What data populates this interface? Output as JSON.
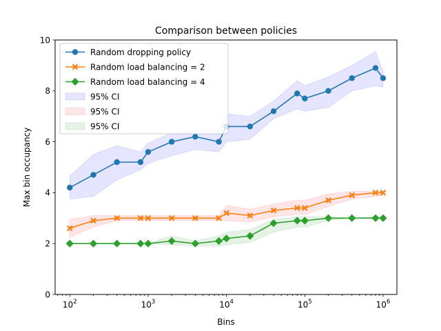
{
  "chart_data": {
    "type": "line",
    "title": "Comparison between policies",
    "xlabel": "Bins",
    "ylabel": "Max bin occupancy",
    "x_scale": "log",
    "xlim": [
      65,
      1500000
    ],
    "ylim": [
      0,
      10
    ],
    "x_ticks": [
      {
        "value": 100,
        "base": "10",
        "exp": "2"
      },
      {
        "value": 1000,
        "base": "10",
        "exp": "3"
      },
      {
        "value": 10000,
        "base": "10",
        "exp": "4"
      },
      {
        "value": 100000,
        "base": "10",
        "exp": "5"
      },
      {
        "value": 1000000,
        "base": "10",
        "exp": "6"
      }
    ],
    "y_ticks": [
      0,
      2,
      4,
      6,
      8,
      10
    ],
    "grid": false,
    "legend_position": "top-left",
    "x": [
      100,
      200,
      400,
      800,
      1000,
      2000,
      4000,
      8000,
      10000,
      20000,
      40000,
      80000,
      100000,
      200000,
      400000,
      800000,
      1000000
    ],
    "series": [
      {
        "name": "Random dropping policy",
        "color": "#1f77b4",
        "marker": "circle",
        "values": [
          4.2,
          4.7,
          5.2,
          5.2,
          5.6,
          6.0,
          6.2,
          6.0,
          6.6,
          6.6,
          7.2,
          7.9,
          7.7,
          8.0,
          8.5,
          8.9,
          8.5
        ],
        "ci_lower": [
          3.75,
          3.85,
          4.5,
          4.9,
          5.15,
          5.45,
          5.7,
          5.6,
          6.0,
          6.1,
          6.9,
          7.3,
          7.2,
          7.35,
          8.0,
          8.2,
          8.15
        ],
        "ci_upper": [
          4.65,
          5.5,
          5.85,
          5.6,
          5.95,
          6.35,
          6.45,
          6.5,
          7.1,
          7.0,
          7.6,
          8.4,
          8.2,
          8.55,
          9.0,
          9.55,
          8.75
        ]
      },
      {
        "name": "Random load balancing = 2",
        "color": "#ff7f0e",
        "marker": "x",
        "values": [
          2.6,
          2.9,
          3.0,
          3.0,
          3.0,
          3.0,
          3.0,
          3.0,
          3.2,
          3.1,
          3.3,
          3.4,
          3.4,
          3.7,
          3.9,
          4.0,
          4.0
        ],
        "ci_lower": [
          2.25,
          2.65,
          2.9,
          2.9,
          2.9,
          2.9,
          2.9,
          2.9,
          2.9,
          2.85,
          3.05,
          3.15,
          3.15,
          3.45,
          3.75,
          3.85,
          3.9
        ],
        "ci_upper": [
          2.95,
          3.1,
          3.1,
          3.1,
          3.1,
          3.1,
          3.1,
          3.1,
          3.5,
          3.35,
          3.55,
          3.7,
          3.7,
          3.95,
          4.05,
          4.05,
          4.05
        ]
      },
      {
        "name": "Random load balancing = 4",
        "color": "#2ca02c",
        "marker": "diamond",
        "values": [
          2.0,
          2.0,
          2.0,
          2.0,
          2.0,
          2.1,
          2.0,
          2.1,
          2.2,
          2.3,
          2.8,
          2.9,
          2.9,
          3.0,
          3.0,
          3.0,
          3.0
        ],
        "ci_lower": [
          2.0,
          2.0,
          2.0,
          2.0,
          2.0,
          1.95,
          1.9,
          1.9,
          1.95,
          2.05,
          2.45,
          2.65,
          2.65,
          2.9,
          3.0,
          3.0,
          3.0
        ],
        "ci_upper": [
          2.0,
          2.0,
          2.0,
          2.0,
          2.0,
          2.3,
          2.1,
          2.3,
          2.45,
          2.55,
          2.95,
          3.05,
          3.05,
          3.05,
          3.0,
          3.05,
          3.05
        ]
      }
    ],
    "ci_bands": [
      {
        "name": "95% CI",
        "color": "#0000ff",
        "series_index": 0
      },
      {
        "name": "95% CI",
        "color": "#ff0000",
        "series_index": 1
      },
      {
        "name": "95% CI",
        "color": "#008000",
        "series_index": 2
      }
    ]
  }
}
